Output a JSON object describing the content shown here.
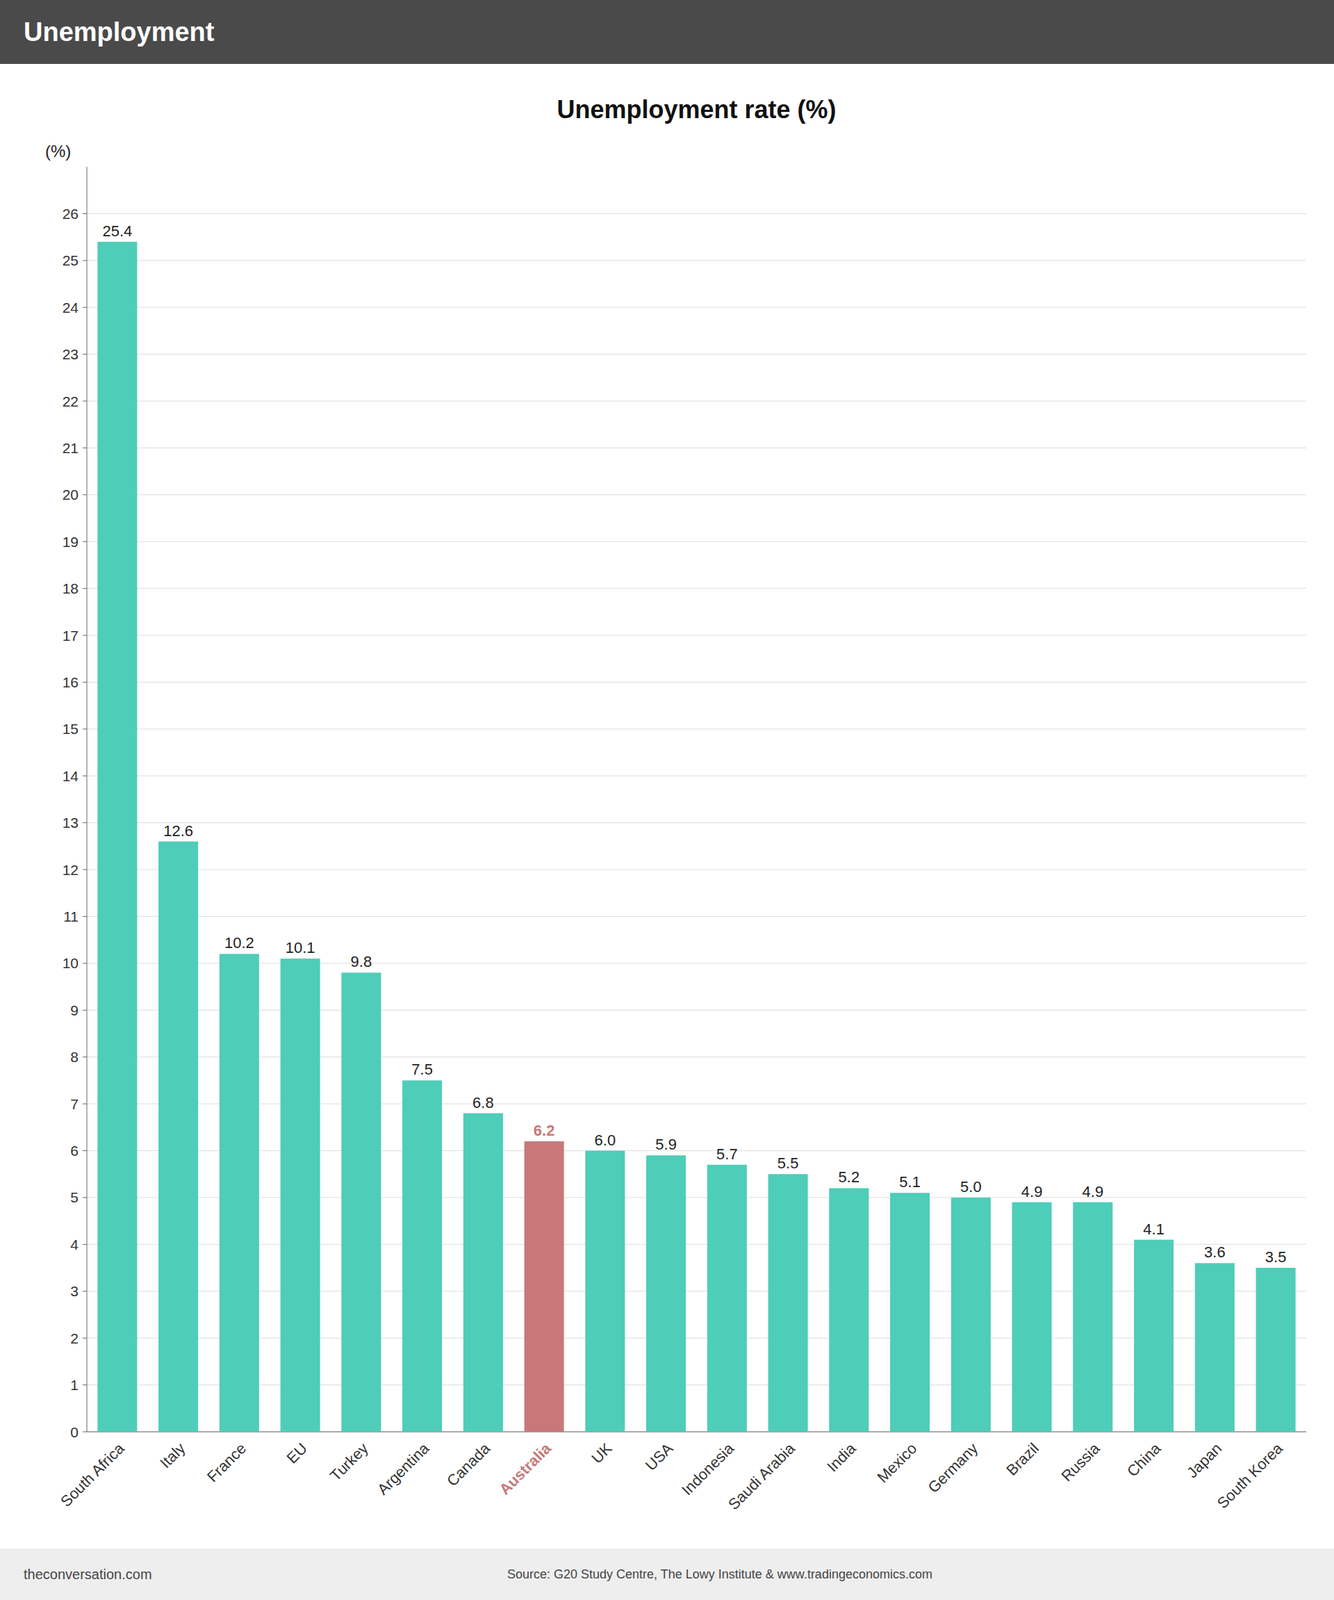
{
  "chart_data": {
    "type": "bar",
    "title": "Unemployment rate (%)",
    "subtitle": "Unemployment",
    "ylabel": "(%)",
    "annotations": [
      "theconversation.com",
      "Source: G20 Study Centre, The Lowy Institute & www.tradingeconomics.com"
    ],
    "categories": [
      "South Africa",
      "Italy",
      "France",
      "EU",
      "Turkey",
      "Argentina",
      "Canada",
      "Australia",
      "UK",
      "USA",
      "Indonesia",
      "Saudi Arabia",
      "India",
      "Mexico",
      "Germany",
      "Brazil",
      "Russia",
      "China",
      "Japan",
      "South Korea"
    ],
    "values": [
      25.4,
      12.6,
      10.2,
      10.1,
      9.8,
      7.5,
      6.8,
      6.2,
      6.0,
      5.9,
      5.7,
      5.5,
      5.2,
      5.1,
      5.0,
      4.9,
      4.9,
      4.1,
      3.6,
      3.5
    ],
    "value_labels": [
      "25.4",
      "12.6",
      "10.2",
      "10.1",
      "9.8",
      "7.5",
      "6.8",
      "6.2",
      "6.0",
      "5.9",
      "5.7",
      "5.5",
      "5.2",
      "5.1",
      "5.0",
      "4.9",
      "4.9",
      "4.1",
      "3.6",
      "3.5"
    ],
    "colors": [
      "#4ECDB8",
      "#4ECDB8",
      "#4ECDB8",
      "#4ECDB8",
      "#4ECDB8",
      "#4ECDB8",
      "#4ECDB8",
      "#C87878",
      "#4ECDB8",
      "#4ECDB8",
      "#4ECDB8",
      "#4ECDB8",
      "#4ECDB8",
      "#4ECDB8",
      "#4ECDB8",
      "#4ECDB8",
      "#4ECDB8",
      "#4ECDB8",
      "#4ECDB8",
      "#4ECDB8"
    ],
    "ylim": [
      0,
      27
    ],
    "yticks": [
      0,
      1,
      2,
      3,
      4,
      5,
      6,
      7,
      8,
      9,
      10,
      11,
      12,
      13,
      14,
      15,
      16,
      17,
      18,
      19,
      20,
      21,
      22,
      23,
      24,
      25,
      26
    ],
    "grid": true,
    "data_labels": true
  }
}
